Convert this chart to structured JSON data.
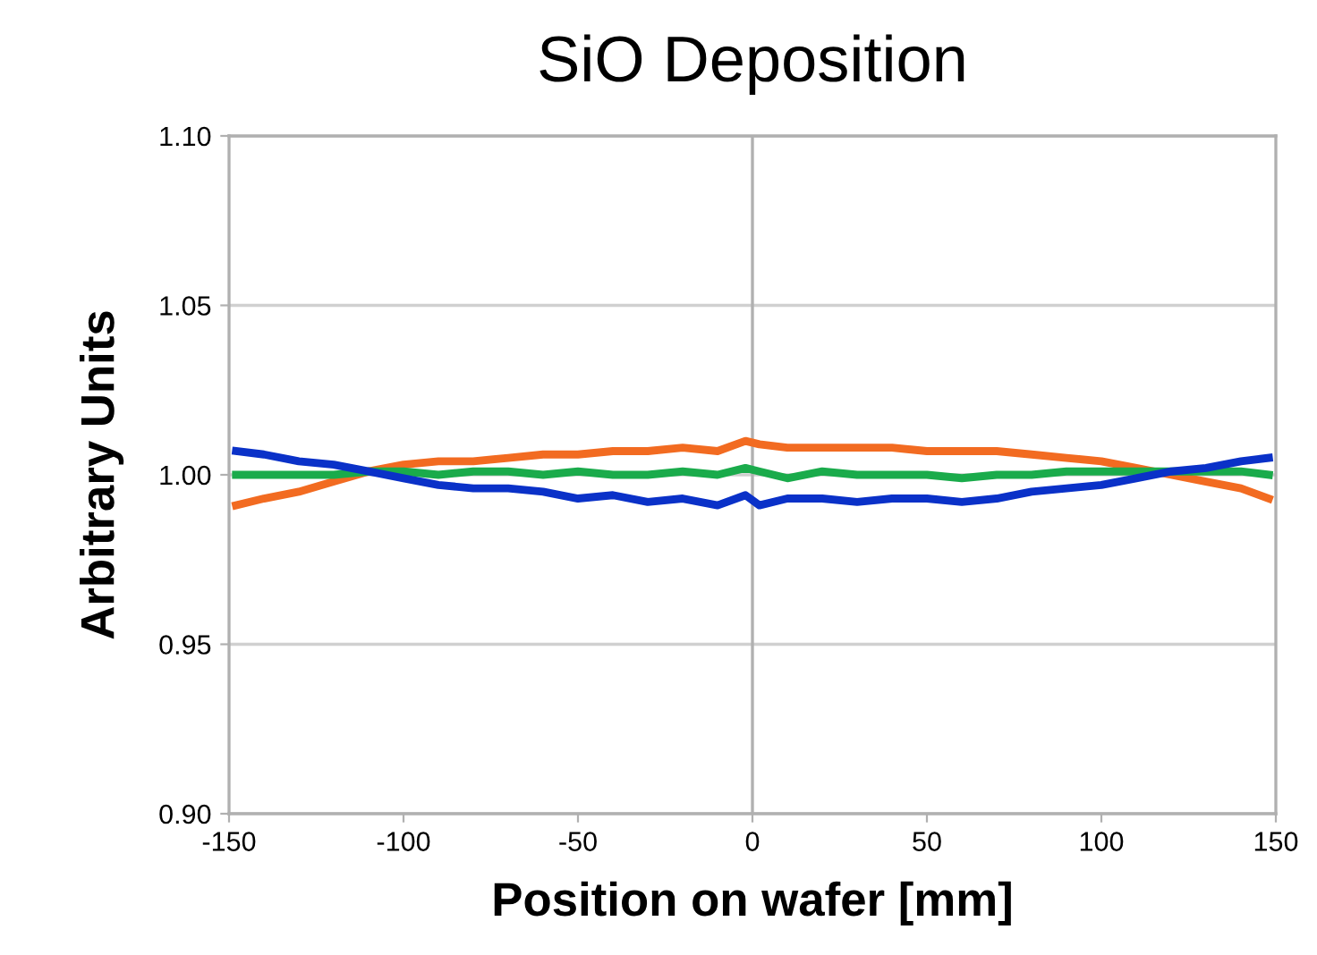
{
  "chart_data": {
    "type": "line",
    "title": "SiO Deposition",
    "xlabel": "Position on wafer [mm]",
    "ylabel": "Arbitrary Units",
    "xlim": [
      -150,
      150
    ],
    "xticks": [
      -150,
      -100,
      -50,
      0,
      50,
      100,
      150
    ],
    "ylim": [
      0.9,
      1.1
    ],
    "yticks": [
      {
        "value": 0.9,
        "label": "0.90"
      },
      {
        "value": 0.95,
        "label": "0.95"
      },
      {
        "value": 1.0,
        "label": "1.00"
      },
      {
        "value": 1.05,
        "label": "1.05"
      },
      {
        "value": 1.1,
        "label": "1.10"
      }
    ],
    "grid": "y",
    "legend": false,
    "ref_lines": [
      {
        "axis": "x",
        "value": 0,
        "color": "#b0b0b0"
      }
    ],
    "x": [
      -148,
      -140,
      -130,
      -120,
      -110,
      -100,
      -90,
      -80,
      -70,
      -60,
      -50,
      -40,
      -30,
      -20,
      -10,
      -2,
      2,
      10,
      20,
      30,
      40,
      50,
      60,
      70,
      80,
      90,
      100,
      110,
      120,
      130,
      140,
      148
    ],
    "series": [
      {
        "color": "#f26b21",
        "values": [
          0.991,
          0.993,
          0.995,
          0.998,
          1.001,
          1.003,
          1.004,
          1.004,
          1.005,
          1.006,
          1.006,
          1.007,
          1.007,
          1.008,
          1.007,
          1.01,
          1.009,
          1.008,
          1.008,
          1.008,
          1.008,
          1.007,
          1.007,
          1.007,
          1.006,
          1.005,
          1.004,
          1.002,
          1.0,
          0.998,
          0.996,
          0.993
        ]
      },
      {
        "color": "#1aab4b",
        "values": [
          1.0,
          1.0,
          1.0,
          1.0,
          1.001,
          1.001,
          1.0,
          1.001,
          1.001,
          1.0,
          1.001,
          1.0,
          1.0,
          1.001,
          1.0,
          1.002,
          1.001,
          0.999,
          1.001,
          1.0,
          1.0,
          1.0,
          0.999,
          1.0,
          1.0,
          1.001,
          1.001,
          1.001,
          1.001,
          1.001,
          1.001,
          1.0
        ]
      },
      {
        "color": "#0a31c8",
        "values": [
          1.007,
          1.006,
          1.004,
          1.003,
          1.001,
          0.999,
          0.997,
          0.996,
          0.996,
          0.995,
          0.993,
          0.994,
          0.992,
          0.993,
          0.991,
          0.994,
          0.991,
          0.993,
          0.993,
          0.992,
          0.993,
          0.993,
          0.992,
          0.993,
          0.995,
          0.996,
          0.997,
          0.999,
          1.001,
          1.002,
          1.004,
          1.005
        ]
      }
    ]
  }
}
